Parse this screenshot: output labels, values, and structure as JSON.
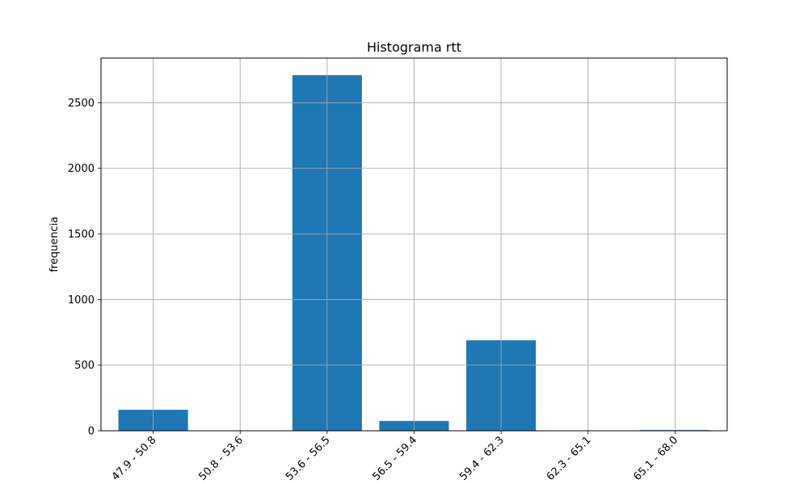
{
  "chart_data": {
    "type": "bar",
    "title": "Histograma rtt",
    "xlabel": "",
    "ylabel": "frequencia",
    "categories": [
      "47.9 - 50.8",
      "50.8 - 53.6",
      "53.6 - 56.5",
      "56.5 - 59.4",
      "59.4 - 62.3",
      "62.3 - 65.1",
      "65.1 - 68.0"
    ],
    "values": [
      160,
      0,
      2710,
      75,
      690,
      0,
      5
    ],
    "ylim": [
      0,
      2840
    ],
    "yticks": [
      0,
      500,
      1000,
      1500,
      2000,
      2500
    ],
    "grid": true,
    "bar_color": "#1f77b4",
    "grid_color": "#b0b0b0"
  }
}
